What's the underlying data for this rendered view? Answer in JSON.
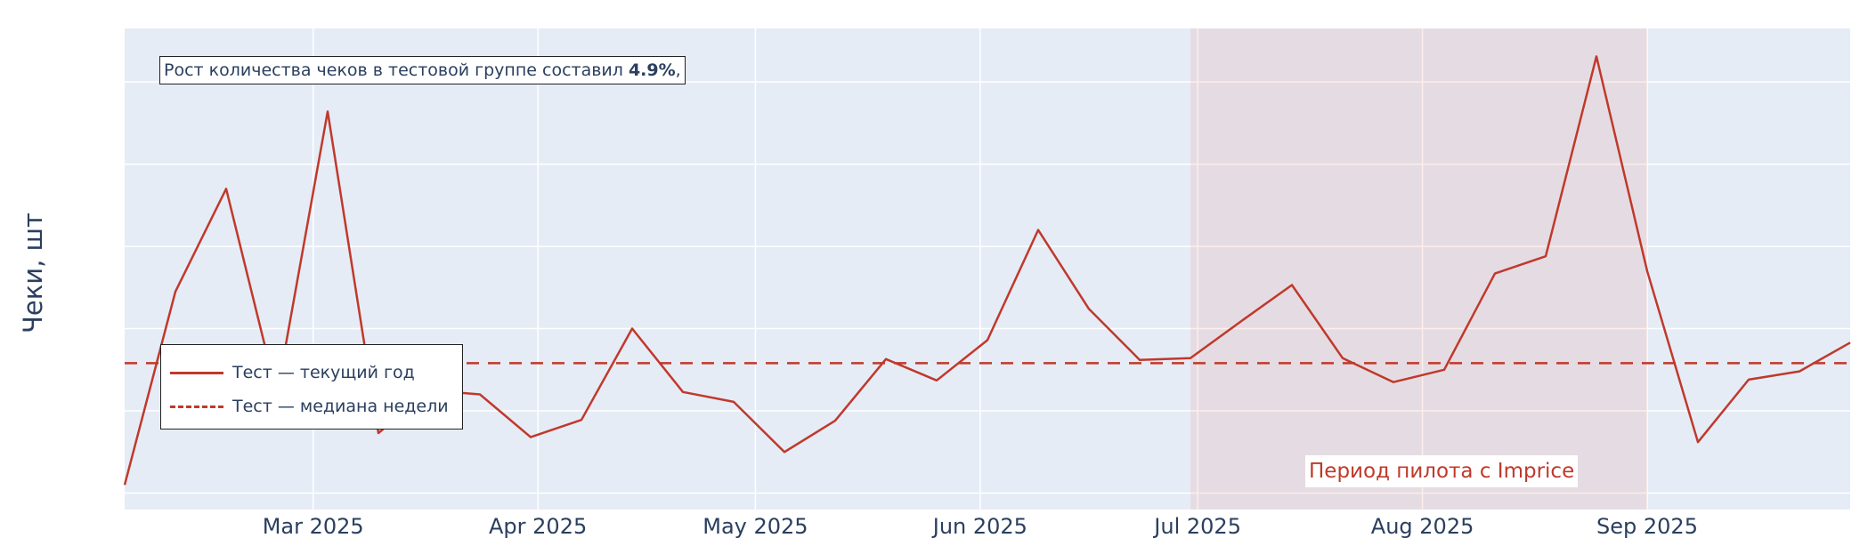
{
  "chart_data": {
    "type": "line",
    "title": "",
    "xlabel": "",
    "ylabel": "Чеки, шт",
    "x_ticks": [
      "Mar 2025",
      "Apr 2025",
      "May 2025",
      "Jun 2025",
      "Jul 2025",
      "Aug 2025",
      "Sep 2025"
    ],
    "x_tick_dates": [
      "2025-03-01",
      "2025-04-01",
      "2025-05-01",
      "2025-06-01",
      "2025-07-01",
      "2025-08-01",
      "2025-09-01"
    ],
    "x_range": [
      "2025-02-03",
      "2025-09-29"
    ],
    "y_range": [
      0.8,
      6.65
    ],
    "grid": true,
    "legend_position": "left",
    "series": [
      {
        "name": "Тест — текущий год",
        "style": "solid",
        "color": "#c0392b",
        "x": [
          "2025-02-03",
          "2025-02-10",
          "2025-02-17",
          "2025-02-24",
          "2025-03-03",
          "2025-03-10",
          "2025-03-17",
          "2025-03-24",
          "2025-03-31",
          "2025-04-07",
          "2025-04-14",
          "2025-04-21",
          "2025-04-28",
          "2025-05-05",
          "2025-05-12",
          "2025-05-19",
          "2025-05-26",
          "2025-06-02",
          "2025-06-09",
          "2025-06-16",
          "2025-06-23",
          "2025-06-30",
          "2025-07-07",
          "2025-07-14",
          "2025-07-21",
          "2025-07-28",
          "2025-08-04",
          "2025-08-11",
          "2025-08-18",
          "2025-08-25",
          "2025-09-01",
          "2025-09-08",
          "2025-09-15",
          "2025-09-22",
          "2025-09-29"
        ],
        "values": [
          1.1,
          3.45,
          4.7,
          2.2,
          5.64,
          1.73,
          2.25,
          2.2,
          1.68,
          1.89,
          3.0,
          2.23,
          2.11,
          1.5,
          1.88,
          2.63,
          2.37,
          2.86,
          4.2,
          3.24,
          2.62,
          2.64,
          3.09,
          3.53,
          2.64,
          2.35,
          2.5,
          3.67,
          3.88,
          6.31,
          3.7,
          1.62,
          2.38,
          2.48,
          2.83
        ]
      },
      {
        "name": "Тест — медиана недели",
        "style": "dash",
        "color": "#c0392b",
        "constant": 2.58
      }
    ],
    "shaded_regions": [
      {
        "start": "2025-06-30",
        "end": "2025-09-01",
        "color": "rgba(231,76,60,0.10)",
        "label": "Период пилота с Imprice"
      }
    ],
    "annotations": [
      {
        "text_prefix": "Рост количества чеков в тестовой группе составил ",
        "text_bold": "4.9%",
        "text_suffix": ","
      }
    ]
  },
  "annotation": {
    "prefix": "Рост количества чеков в тестовой группе составил ",
    "bold": "4.9%",
    "suffix": ","
  },
  "legend": {
    "items": [
      "Тест — текущий год",
      "Тест — медиана недели"
    ]
  },
  "pilot_label": "Период пилота с Imprice",
  "colors": {
    "plot_bg": "#e5ecf6",
    "grid": "#ffffff",
    "line": "#c0392b",
    "shade": "rgba(231,76,60,0.10)",
    "axis_text": "#2a3f5f"
  }
}
